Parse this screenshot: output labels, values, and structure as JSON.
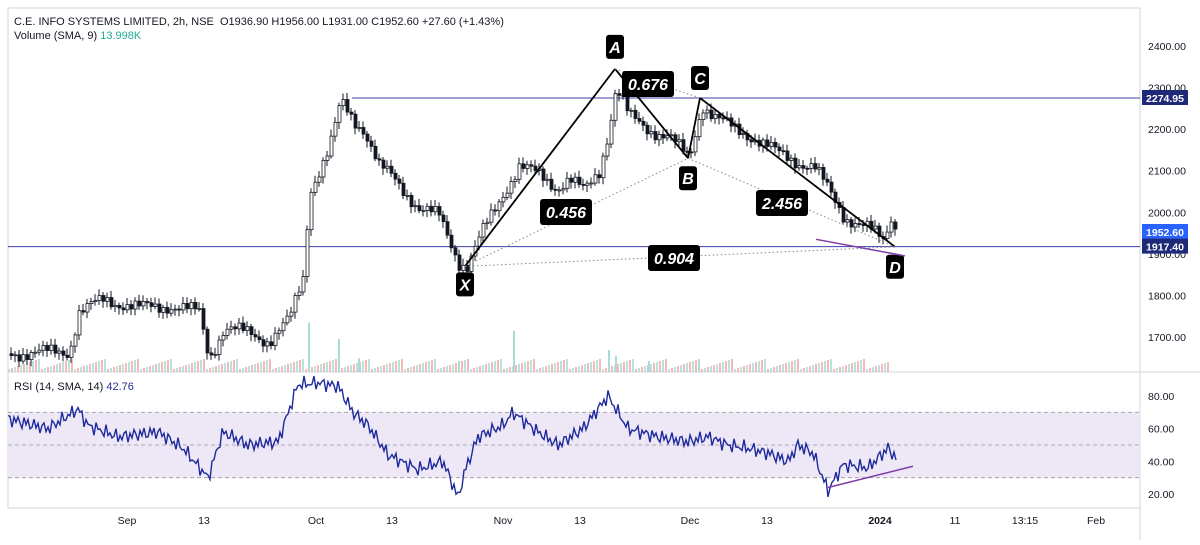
{
  "legend": {
    "symbol": "C.E. INFO SYSTEMS LIMITED, 2h, NSE",
    "open": "O1936.90",
    "high": "H1956.00",
    "low": "L1931.00",
    "close": "C1952.60",
    "change": "+27.60 (+1.43%)",
    "volume_label": "Volume (SMA, 9)",
    "volume_value": "13.998K",
    "rsi_label": "RSI (14, SMA, 14)",
    "rsi_value": "42.76"
  },
  "colors": {
    "up": "#26a69a",
    "down": "#131722",
    "pattern": "#000000",
    "hline": "#3f3fa8",
    "rsi_line": "#1e2a9c",
    "rsi_band": "#ede7f6",
    "divergence": "#7e3ba6",
    "price_tag": "#2962ff",
    "hline_tag": "#1e2a78"
  },
  "chart_data": [
    {
      "type": "candlestick",
      "x_ticks": [
        "Sep",
        "13",
        "Oct",
        "13",
        "Nov",
        "13",
        "Dec",
        "13",
        "2024",
        "11",
        "13:15",
        "Feb"
      ],
      "y_ticks": [
        1700.0,
        1800.0,
        1900.0,
        2000.0,
        2100.0,
        2200.0,
        2300.0,
        2400.0
      ],
      "ylim": [
        1630,
        2470
      ],
      "price_path": [
        [
          0,
          1660
        ],
        [
          60,
          1665
        ],
        [
          70,
          1760
        ],
        [
          95,
          1790
        ],
        [
          130,
          1770
        ],
        [
          160,
          1775
        ],
        [
          190,
          1760
        ],
        [
          200,
          1650
        ],
        [
          215,
          1720
        ],
        [
          240,
          1710
        ],
        [
          260,
          1690
        ],
        [
          280,
          1740
        ],
        [
          295,
          1850
        ],
        [
          300,
          2050
        ],
        [
          320,
          2150
        ],
        [
          332,
          2265
        ],
        [
          345,
          2220
        ],
        [
          355,
          2200
        ],
        [
          370,
          2110
        ],
        [
          385,
          2080
        ],
        [
          410,
          2010
        ],
        [
          430,
          1990
        ],
        [
          450,
          1880
        ],
        [
          458,
          1870
        ],
        [
          475,
          1960
        ],
        [
          495,
          2050
        ],
        [
          510,
          2110
        ],
        [
          530,
          2090
        ],
        [
          548,
          2060
        ],
        [
          560,
          2080
        ],
        [
          575,
          2050
        ],
        [
          590,
          2100
        ],
        [
          600,
          2200
        ],
        [
          607,
          2300
        ],
        [
          620,
          2230
        ],
        [
          640,
          2200
        ],
        [
          660,
          2180
        ],
        [
          680,
          2130
        ],
        [
          693,
          2260
        ],
        [
          705,
          2230
        ],
        [
          725,
          2200
        ],
        [
          745,
          2180
        ],
        [
          770,
          2140
        ],
        [
          790,
          2120
        ],
        [
          805,
          2110
        ],
        [
          820,
          2050
        ],
        [
          835,
          1990
        ],
        [
          860,
          1960
        ],
        [
          875,
          1930
        ],
        [
          882,
          1990
        ],
        [
          888,
          1952
        ]
      ],
      "harmonic_points": [
        {
          "label": "X",
          "x_index": 457,
          "price": 1870
        },
        {
          "label": "A",
          "x_index": 607,
          "price": 2345
        },
        {
          "label": "B",
          "x_index": 680,
          "price": 2130
        },
        {
          "label": "C",
          "x_index": 692,
          "price": 2275
        },
        {
          "label": "D",
          "x_index": 887,
          "price": 1917
        }
      ],
      "ratios": [
        "0.676",
        "0.456",
        "2.456",
        "0.904"
      ],
      "horizontal_levels": [
        2274.95,
        1917.4
      ],
      "price_labels": [
        "2274.95",
        "1952.60",
        "1917.40"
      ],
      "last_price": 1952.6
    },
    {
      "type": "bar",
      "name": "Volume (SMA, 9)",
      "highlight_bars": [
        {
          "x_index": 300,
          "rel": 0.9
        },
        {
          "x_index": 330,
          "rel": 0.6
        },
        {
          "x_index": 505,
          "rel": 0.75
        },
        {
          "x_index": 600,
          "rel": 0.4
        },
        {
          "x_index": 607,
          "rel": 0.3
        },
        {
          "x_index": 640,
          "rel": 0.2
        },
        {
          "x_index": 690,
          "rel": 0.2
        },
        {
          "x_index": 350,
          "rel": 0.25
        },
        {
          "x_index": 450,
          "rel": 0.2
        }
      ]
    },
    {
      "type": "line",
      "name": "RSI (14, SMA, 14)",
      "y_ticks": [
        20.0,
        40.0,
        60.0,
        80.0
      ],
      "ylim": [
        10,
        90
      ],
      "band": [
        30,
        70
      ],
      "midline": 50,
      "path": [
        [
          0,
          66
        ],
        [
          40,
          60
        ],
        [
          70,
          72
        ],
        [
          80,
          62
        ],
        [
          110,
          55
        ],
        [
          150,
          58
        ],
        [
          175,
          48
        ],
        [
          200,
          30
        ],
        [
          215,
          58
        ],
        [
          240,
          50
        ],
        [
          270,
          52
        ],
        [
          290,
          87
        ],
        [
          310,
          88
        ],
        [
          330,
          86
        ],
        [
          345,
          70
        ],
        [
          360,
          62
        ],
        [
          380,
          44
        ],
        [
          410,
          35
        ],
        [
          435,
          40
        ],
        [
          450,
          18
        ],
        [
          458,
          36
        ],
        [
          470,
          55
        ],
        [
          495,
          62
        ],
        [
          505,
          70
        ],
        [
          530,
          58
        ],
        [
          550,
          50
        ],
        [
          575,
          60
        ],
        [
          600,
          80
        ],
        [
          620,
          60
        ],
        [
          650,
          55
        ],
        [
          680,
          52
        ],
        [
          700,
          55
        ],
        [
          720,
          50
        ],
        [
          740,
          48
        ],
        [
          760,
          45
        ],
        [
          780,
          40
        ],
        [
          790,
          50
        ],
        [
          805,
          45
        ],
        [
          820,
          22
        ],
        [
          835,
          38
        ],
        [
          860,
          36
        ],
        [
          880,
          48
        ],
        [
          888,
          42
        ]
      ],
      "divergence_line": [
        [
          820,
          24
        ],
        [
          905,
          37
        ]
      ]
    }
  ]
}
